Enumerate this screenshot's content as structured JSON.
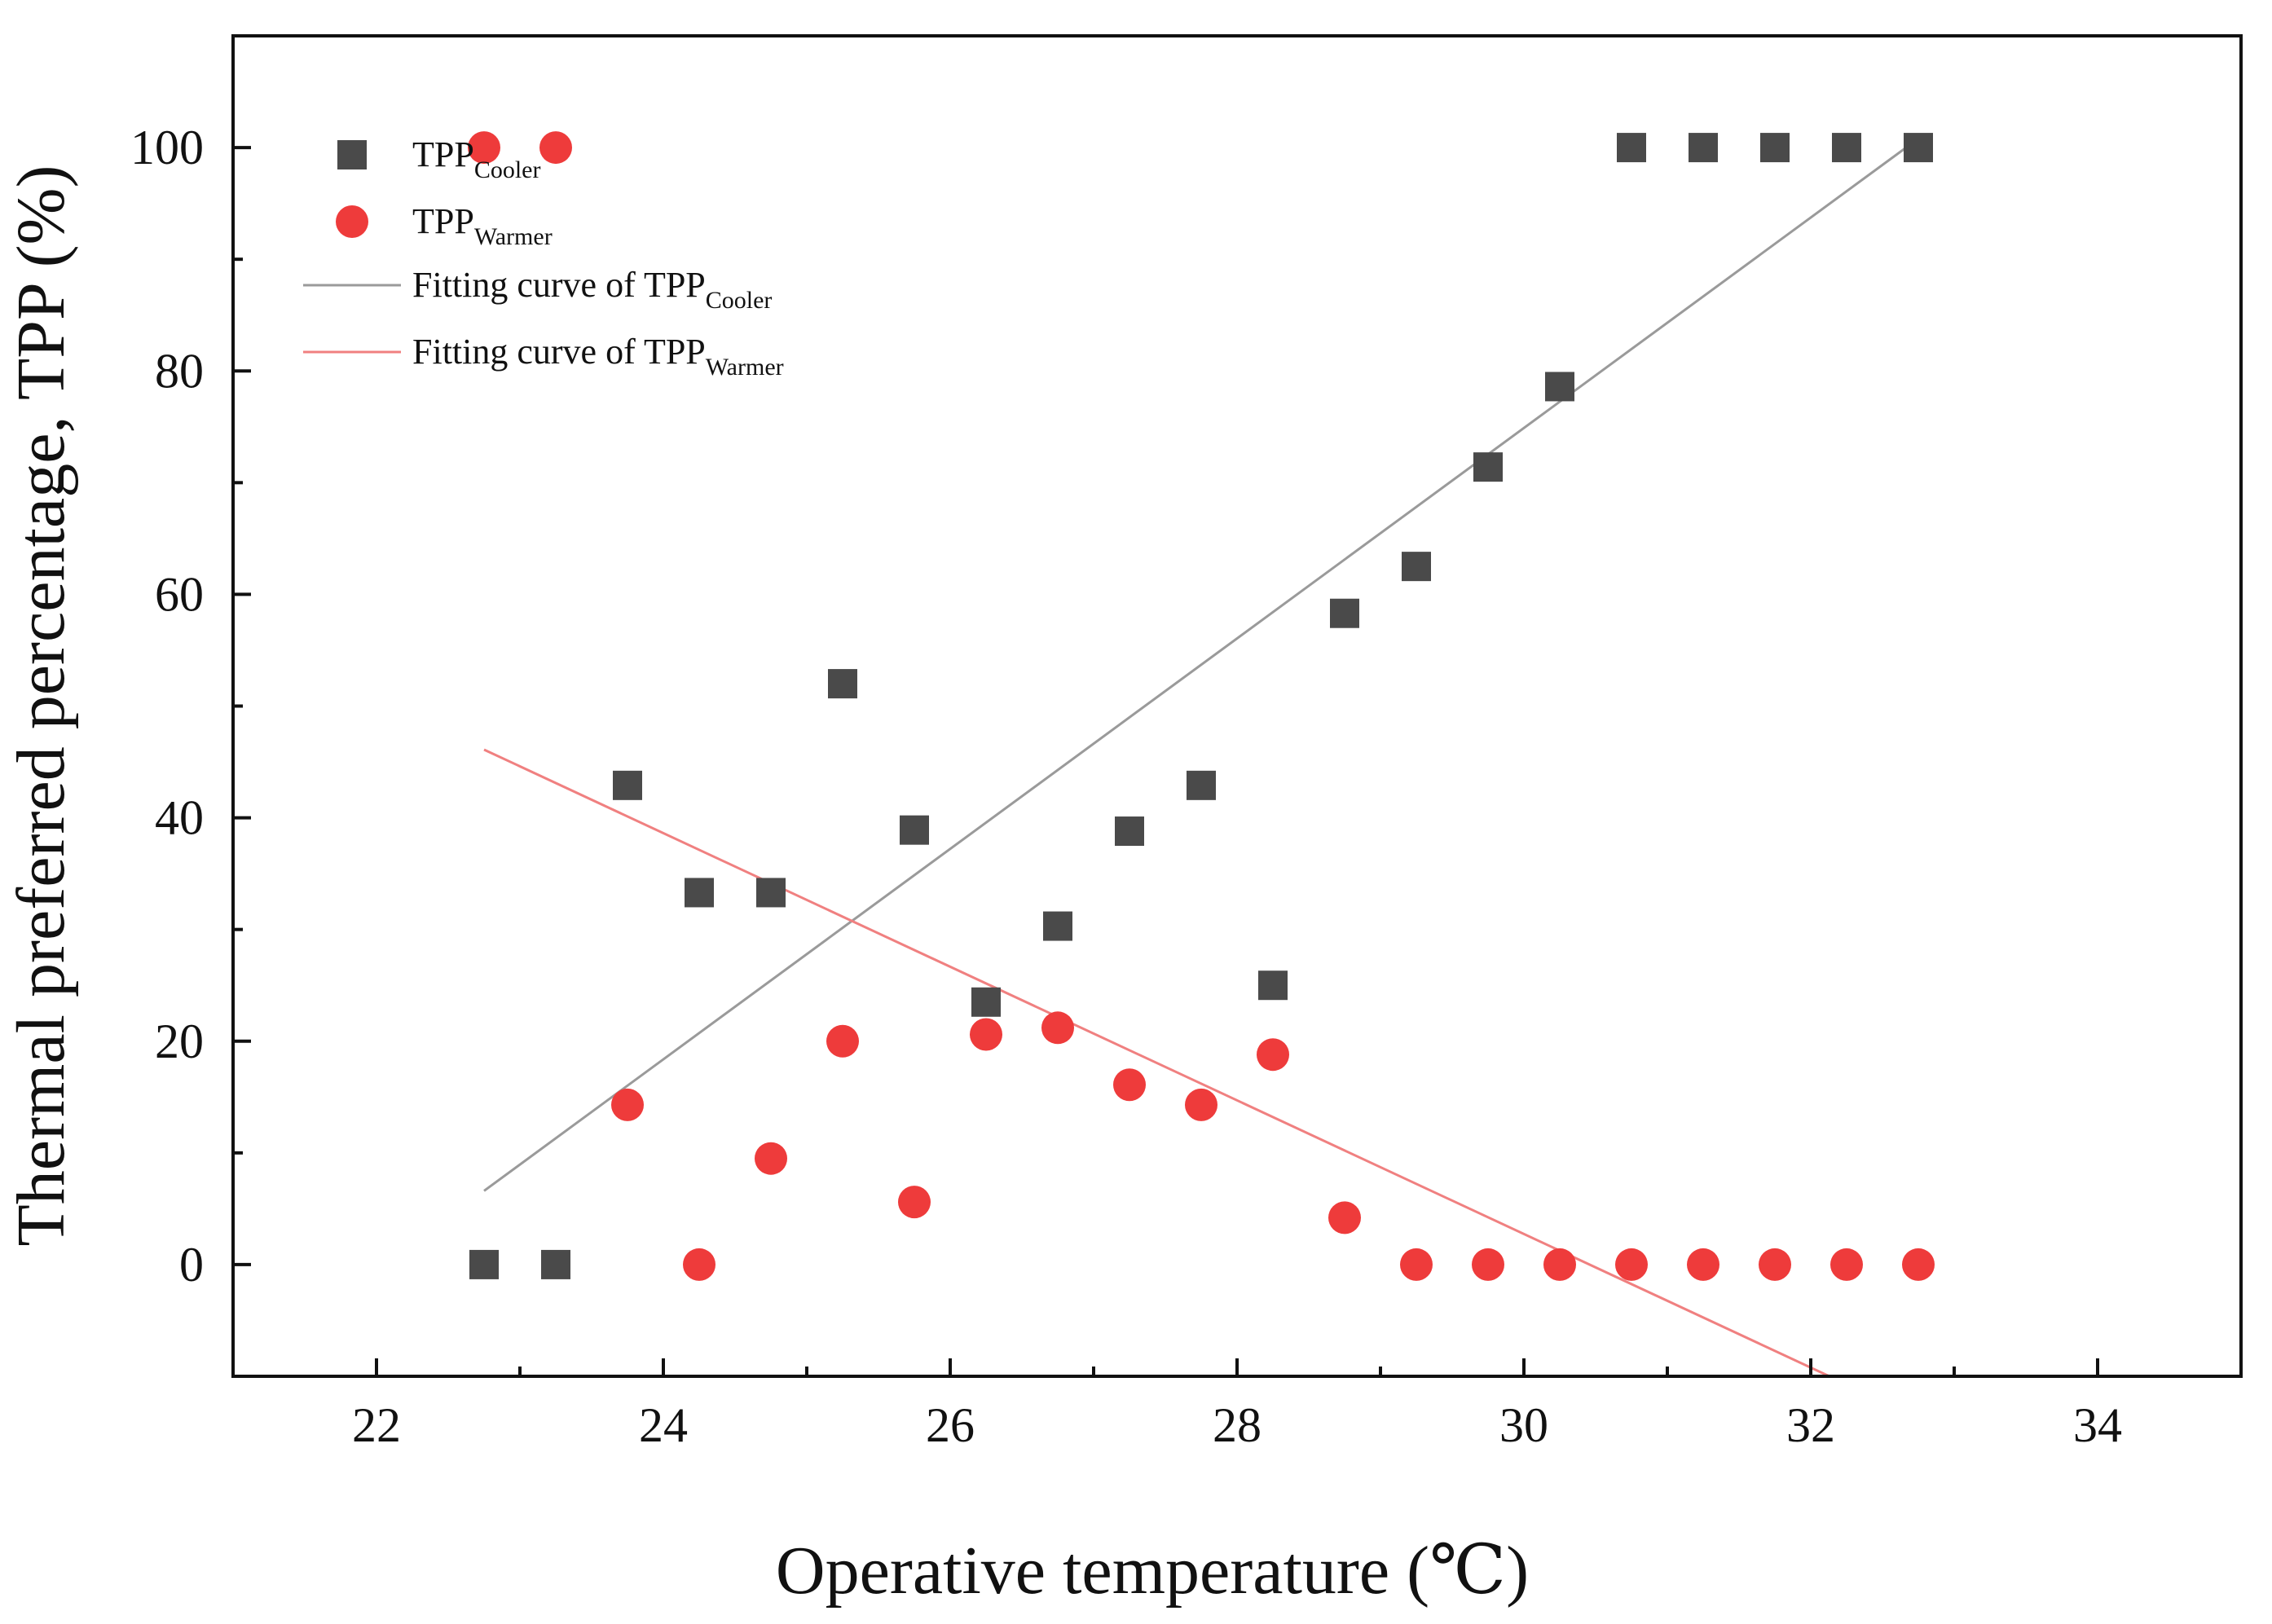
{
  "chart_data": {
    "type": "scatter",
    "xlabel": "Operative temperature (℃)",
    "ylabel": "Thermal preferred percentage,  TPP (%)",
    "xlim": [
      21,
      35
    ],
    "ylim": [
      -10,
      110
    ],
    "x_ticks": [
      22,
      24,
      26,
      28,
      30,
      32,
      34
    ],
    "y_ticks": [
      0,
      20,
      40,
      60,
      80,
      100
    ],
    "grid": false,
    "legend_position": "top-left",
    "series": [
      {
        "name": "TPP",
        "subscript": "Cooler",
        "marker": "square",
        "color": "#4a4a4a",
        "x": [
          22.75,
          23.25,
          23.75,
          24.25,
          24.75,
          25.25,
          25.75,
          26.25,
          26.75,
          27.25,
          27.75,
          28.25,
          28.75,
          29.25,
          29.75,
          30.25,
          30.75,
          31.25,
          31.75,
          32.25,
          32.75
        ],
        "y": [
          0,
          0,
          42.9,
          33.3,
          33.3,
          52.0,
          38.9,
          23.5,
          30.3,
          38.8,
          42.9,
          25.0,
          58.3,
          62.5,
          71.4,
          78.6,
          100,
          100,
          100,
          100,
          100
        ]
      },
      {
        "name": "TPP",
        "subscript": "Warmer",
        "marker": "circle",
        "color": "#ee3b3b",
        "x": [
          22.75,
          23.25,
          23.75,
          24.25,
          24.75,
          25.25,
          25.75,
          26.25,
          26.75,
          27.25,
          27.75,
          28.25,
          28.75,
          29.25,
          29.75,
          30.25,
          30.75,
          31.25,
          31.75,
          32.25,
          32.75
        ],
        "y": [
          100,
          100,
          14.3,
          0,
          9.5,
          20.0,
          5.6,
          20.6,
          21.2,
          16.1,
          14.3,
          18.8,
          4.2,
          0,
          0,
          0,
          0,
          0,
          0,
          0,
          0
        ]
      }
    ],
    "fits": [
      {
        "name": "Fitting curve of  TPP",
        "subscript": "Cooler",
        "color": "#9a9a9a",
        "x": [
          22.75,
          32.75
        ],
        "y": [
          6.6,
          100.8
        ]
      },
      {
        "name": "Fitting curve of  TPP",
        "subscript": "Warmer",
        "color": "#f08080",
        "x": [
          22.75,
          32.13
        ],
        "y": [
          46.1,
          -10
        ]
      }
    ]
  }
}
